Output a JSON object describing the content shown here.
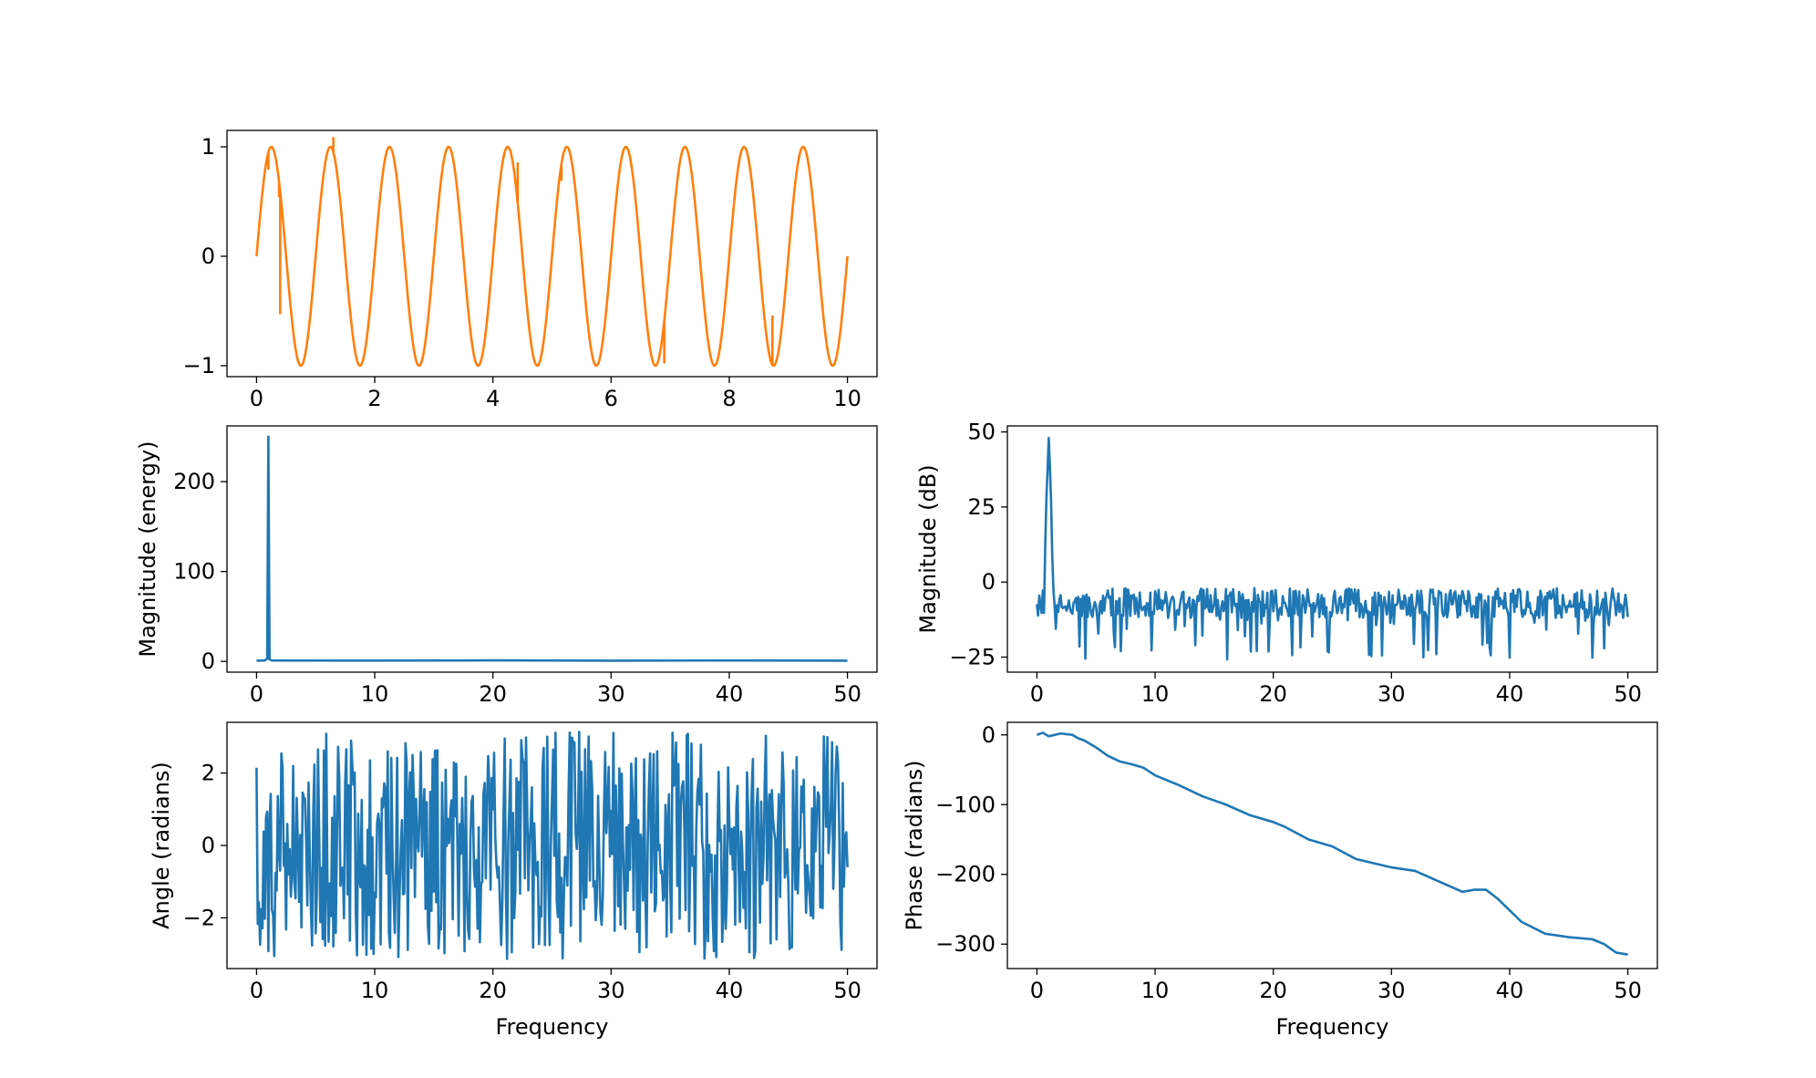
{
  "chart_data": [
    {
      "id": "signal",
      "type": "line",
      "title": "",
      "xlabel": "",
      "ylabel": "",
      "xlim": [
        -0.5,
        10.5
      ],
      "ylim": [
        -1.1,
        1.15
      ],
      "xticks": [
        0,
        2,
        4,
        6,
        8,
        10
      ],
      "xticklabels": [
        "0",
        "2",
        "4",
        "6",
        "8",
        "10"
      ],
      "yticks": [
        -1,
        0,
        1
      ],
      "yticklabels": [
        "−1",
        "0",
        "1"
      ],
      "series": [
        {
          "color": "#ff7f0e",
          "signal": {
            "func": "sin",
            "freq_hz": 1,
            "amplitude": 1,
            "x_start": 0,
            "x_end": 10,
            "samples": 1000
          },
          "glitches": [
            {
              "x": 0.2,
              "y": 0.8
            },
            {
              "x": 0.38,
              "y": 0.55
            },
            {
              "x": 0.4,
              "y": -0.52
            },
            {
              "x": 1.3,
              "y": 1.08
            },
            {
              "x": 4.42,
              "y": 0.85
            },
            {
              "x": 5.16,
              "y": 0.7
            },
            {
              "x": 6.9,
              "y": -0.97
            },
            {
              "x": 8.73,
              "y": -0.55
            }
          ]
        }
      ]
    },
    {
      "id": "magnitude",
      "type": "line",
      "title": "",
      "xlabel": "",
      "ylabel": "Magnitude (energy)",
      "xlim": [
        -2.5,
        52.5
      ],
      "ylim": [
        -12,
        262
      ],
      "xticks": [
        0,
        10,
        20,
        30,
        40,
        50
      ],
      "xticklabels": [
        "0",
        "10",
        "20",
        "30",
        "40",
        "50"
      ],
      "yticks": [
        0,
        100,
        200
      ],
      "yticklabels": [
        "0",
        "100",
        "200"
      ],
      "series": [
        {
          "color": "#1f77b4",
          "points": [
            [
              0,
              0.8
            ],
            [
              0.7,
              1.0
            ],
            [
              0.9,
              3.0
            ],
            [
              1.0,
              250
            ],
            [
              1.1,
              2.0
            ],
            [
              1.3,
              1.0
            ],
            [
              10,
              0.9
            ],
            [
              20,
              1.1
            ],
            [
              30,
              0.8
            ],
            [
              40,
              1.0
            ],
            [
              50,
              0.8
            ]
          ]
        }
      ]
    },
    {
      "id": "magnitude_db",
      "type": "line",
      "title": "",
      "xlabel": "",
      "ylabel": "Magnitude (dB)",
      "xlim": [
        -2.5,
        52.5
      ],
      "ylim": [
        -30,
        52
      ],
      "xticks": [
        0,
        10,
        20,
        30,
        40,
        50
      ],
      "xticklabels": [
        "0",
        "10",
        "20",
        "30",
        "40",
        "50"
      ],
      "yticks": [
        -25,
        0,
        25,
        50
      ],
      "yticklabels": [
        "−25",
        "0",
        "25",
        "50"
      ],
      "series": [
        {
          "color": "#1f77b4",
          "noise": {
            "x_start": 0,
            "x_end": 50,
            "samples": 500,
            "center": -7,
            "spread": 5,
            "dip_min": -26
          },
          "peak": {
            "x": 1.0,
            "y": 48
          }
        }
      ]
    },
    {
      "id": "angle",
      "type": "line",
      "title": "",
      "xlabel": "Frequency",
      "ylabel": "Angle (radians)",
      "xlim": [
        -2.5,
        52.5
      ],
      "ylim": [
        -3.4,
        3.4
      ],
      "xticks": [
        0,
        10,
        20,
        30,
        40,
        50
      ],
      "xticklabels": [
        "0",
        "10",
        "20",
        "30",
        "40",
        "50"
      ],
      "yticks": [
        -2,
        0,
        2
      ],
      "yticklabels": [
        "−2",
        "0",
        "2"
      ],
      "series": [
        {
          "color": "#1f77b4",
          "noise": {
            "x_start": 0,
            "x_end": 50,
            "samples": 500,
            "min": -3.14,
            "max": 3.14
          }
        }
      ]
    },
    {
      "id": "phase",
      "type": "line",
      "title": "",
      "xlabel": "Frequency",
      "ylabel": "Phase (radians)",
      "xlim": [
        -2.5,
        52.5
      ],
      "ylim": [
        -335,
        18
      ],
      "xticks": [
        0,
        10,
        20,
        30,
        40,
        50
      ],
      "xticklabels": [
        "0",
        "10",
        "20",
        "30",
        "40",
        "50"
      ],
      "yticks": [
        -300,
        -200,
        -100,
        0
      ],
      "yticklabels": [
        "−300",
        "−200",
        "−100",
        "0"
      ],
      "series": [
        {
          "color": "#1f77b4",
          "points": [
            [
              0,
              0
            ],
            [
              0.5,
              3
            ],
            [
              1,
              -2
            ],
            [
              2,
              2
            ],
            [
              3,
              0
            ],
            [
              3.5,
              -5
            ],
            [
              4,
              -8
            ],
            [
              5,
              -18
            ],
            [
              6,
              -30
            ],
            [
              7,
              -38
            ],
            [
              8,
              -42
            ],
            [
              9,
              -47
            ],
            [
              10,
              -58
            ],
            [
              12,
              -72
            ],
            [
              14,
              -88
            ],
            [
              16,
              -100
            ],
            [
              18,
              -115
            ],
            [
              20,
              -125
            ],
            [
              21,
              -132
            ],
            [
              23,
              -150
            ],
            [
              25,
              -160
            ],
            [
              27,
              -178
            ],
            [
              30,
              -190
            ],
            [
              32,
              -195
            ],
            [
              34,
              -210
            ],
            [
              36,
              -225
            ],
            [
              37,
              -222
            ],
            [
              38,
              -222
            ],
            [
              39,
              -235
            ],
            [
              41,
              -268
            ],
            [
              43,
              -285
            ],
            [
              45,
              -290
            ],
            [
              47,
              -293
            ],
            [
              48,
              -300
            ],
            [
              49,
              -312
            ],
            [
              50,
              -315
            ]
          ]
        }
      ]
    }
  ]
}
